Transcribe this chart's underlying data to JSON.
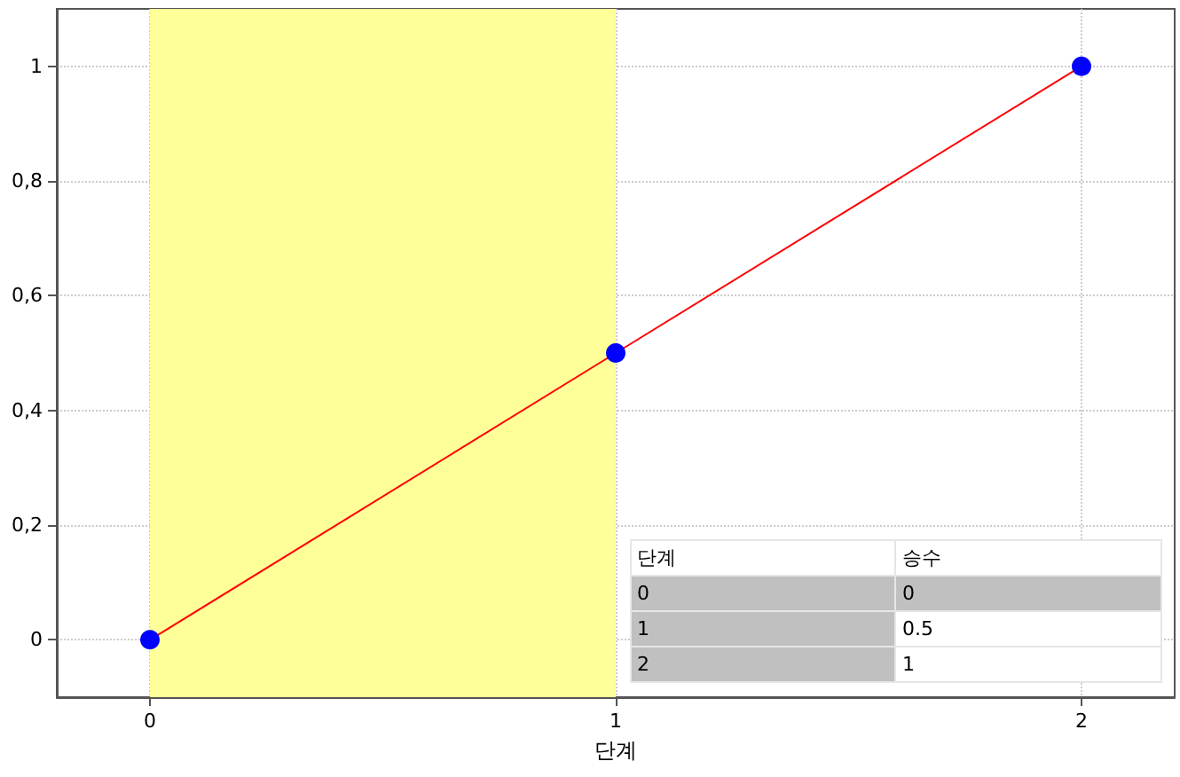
{
  "chart_data": {
    "type": "line",
    "xlabel": "단계",
    "x": [
      0,
      1,
      2
    ],
    "series": [
      {
        "color": "#ff0000",
        "colors": [
          "#0000ff",
          "#0000ff",
          "#0000ff"
        ],
        "values": [
          0,
          0.5,
          1
        ]
      }
    ],
    "xlim": [
      -0.2,
      2.2
    ],
    "xticks": [
      0,
      1,
      2
    ],
    "ylim": [
      -0.1,
      1.1
    ],
    "yticks": [
      0,
      {
        "value": 0.2,
        "label": "0,2"
      },
      {
        "value": 0.4,
        "label": "0,4"
      },
      {
        "value": 0.6,
        "label": "0,6"
      },
      {
        "value": 0.8,
        "label": "0,8"
      },
      1
    ],
    "bands": [
      {
        "axis": "x",
        "from": 0,
        "to": 1,
        "color": "#ffff99"
      }
    ],
    "annotations": [
      "단계",
      "승수",
      "0",
      "0",
      "1",
      "0.5",
      "2",
      "1"
    ],
    "grid": true,
    "marker": "circle",
    "line_style": "solid"
  }
}
